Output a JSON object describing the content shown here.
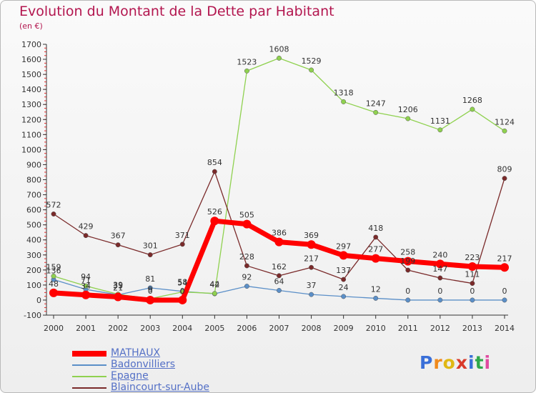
{
  "title": "Evolution du Montant de la Dette par Habitant",
  "unit": "(en €)",
  "logo": {
    "text": "Proxiti",
    "colors": [
      "#3a6fd8",
      "#f08a1c",
      "#e0b814",
      "#d93a2a",
      "#3a6fd8",
      "#2fa84a",
      "#e04aa0"
    ]
  },
  "chart_data": {
    "type": "line",
    "title": "Evolution du Montant de la Dette par Habitant",
    "ylabel": "(en €)",
    "xlabel": "",
    "categories": [
      "2000",
      "2001",
      "2002",
      "2003",
      "2004",
      "2005",
      "2006",
      "2007",
      "2008",
      "2009",
      "2010",
      "2011",
      "2012",
      "2013",
      "2014"
    ],
    "ylim": [
      -100,
      1700
    ],
    "yticks": [
      -100,
      0,
      100,
      200,
      300,
      400,
      500,
      600,
      700,
      800,
      900,
      1000,
      1100,
      1200,
      1300,
      1400,
      1500,
      1600,
      1700
    ],
    "grid": false,
    "legend_position": "bottom-left",
    "series": [
      {
        "name": "MATHAUX",
        "color": "#ff0000",
        "thick": true,
        "values": [
          48,
          34,
          21,
          0,
          0,
          526,
          505,
          386,
          369,
          297,
          277,
          258,
          240,
          223,
          217
        ],
        "labels": [
          "48",
          "34",
          "21",
          "0",
          "0",
          "526",
          "505",
          "386",
          "369",
          "297",
          "277",
          "258",
          "240",
          "223",
          "217"
        ]
      },
      {
        "name": "Badonvilliers",
        "color": "#5b8fc8",
        "thick": false,
        "values": [
          136,
          71,
          35,
          81,
          58,
          42,
          92,
          64,
          37,
          24,
          12,
          0,
          0,
          0,
          0
        ],
        "labels": [
          "136",
          "71",
          "35",
          "81",
          "58",
          "42",
          "92",
          "64",
          "37",
          "24",
          "12",
          "0",
          "0",
          "0",
          "0"
        ]
      },
      {
        "name": "Epagne",
        "color": "#8fd14f",
        "thick": false,
        "values": [
          159,
          94,
          39,
          9,
          54,
          44,
          1523,
          1608,
          1529,
          1318,
          1247,
          1206,
          1131,
          1268,
          1124
        ],
        "labels": [
          "159",
          "94",
          "39",
          "9",
          "54",
          "44",
          "1523",
          "1608",
          "1529",
          "1318",
          "1247",
          "1206",
          "1131",
          "1268",
          "1124"
        ]
      },
      {
        "name": "Blaincourt-sur-Aube",
        "color": "#7a2a2a",
        "thick": false,
        "values": [
          572,
          429,
          367,
          301,
          371,
          854,
          228,
          162,
          217,
          137,
          418,
          199,
          147,
          111,
          809
        ],
        "labels": [
          "572",
          "429",
          "367",
          "301",
          "371",
          "854",
          "228",
          "162",
          "217",
          "137",
          "418",
          "199",
          "147",
          "111",
          "809"
        ]
      }
    ]
  }
}
